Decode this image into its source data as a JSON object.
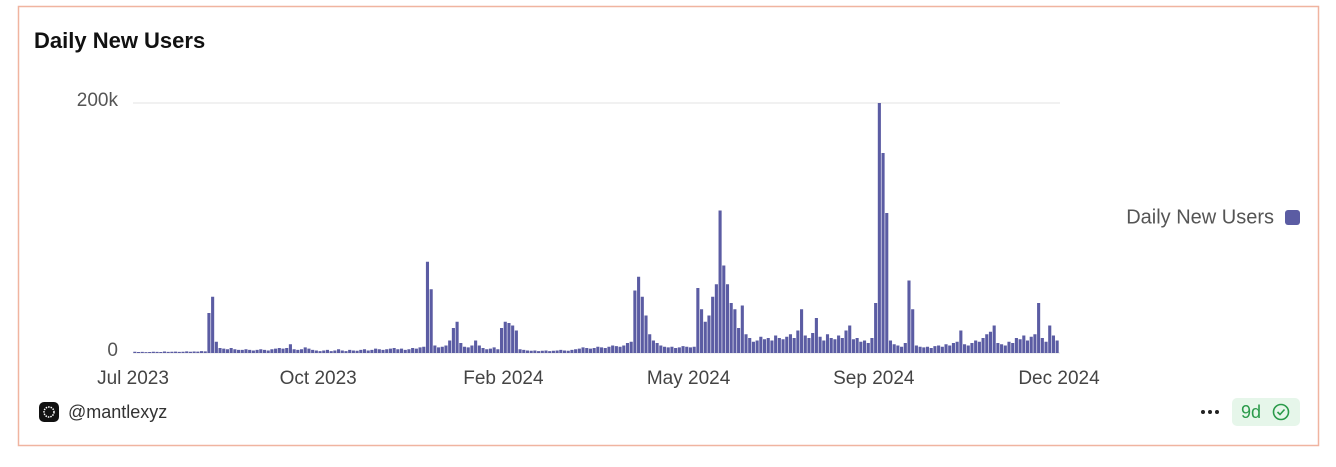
{
  "chart_data": {
    "type": "bar",
    "title": "Daily New Users",
    "series": [
      {
        "name": "Daily New Users",
        "color": "#5b5ca3",
        "values": [
          1000,
          800,
          900,
          700,
          800,
          1000,
          900,
          800,
          1200,
          900,
          1000,
          1100,
          900,
          1000,
          1300,
          1000,
          1200,
          1100,
          1500,
          1300,
          32000,
          45000,
          9000,
          4000,
          3500,
          3000,
          4000,
          3000,
          2500,
          2500,
          3000,
          2500,
          2000,
          2500,
          3000,
          2500,
          2000,
          3000,
          3500,
          4000,
          3500,
          4000,
          7000,
          3000,
          2500,
          3000,
          4500,
          3500,
          2500,
          2000,
          1500,
          2000,
          2500,
          1500,
          2000,
          3000,
          2000,
          1500,
          2500,
          2000,
          1800,
          2500,
          3000,
          2000,
          2500,
          3500,
          3000,
          2500,
          3000,
          3500,
          4000,
          3000,
          3500,
          2500,
          3000,
          4000,
          3500,
          4500,
          5000,
          73000,
          51000,
          6000,
          4500,
          5000,
          6000,
          10000,
          20000,
          25000,
          8000,
          5000,
          4500,
          6000,
          10000,
          6000,
          4000,
          3000,
          3500,
          4500,
          3000,
          20000,
          25000,
          24000,
          22000,
          18000,
          3000,
          2500,
          2000,
          1800,
          2000,
          1500,
          1800,
          2000,
          1500,
          1800,
          2000,
          2500,
          2000,
          1800,
          2500,
          3000,
          3500,
          4500,
          4000,
          3500,
          4000,
          5000,
          4500,
          4000,
          5000,
          6000,
          5500,
          5000,
          6000,
          8000,
          9000,
          50000,
          61000,
          45000,
          30000,
          15000,
          10000,
          8000,
          6000,
          5000,
          4500,
          5000,
          4000,
          4500,
          5500,
          5000,
          4500,
          5000,
          52000,
          35000,
          25000,
          30000,
          45000,
          55000,
          114000,
          70000,
          55000,
          40000,
          35000,
          20000,
          38000,
          15000,
          12000,
          9000,
          10000,
          13000,
          11000,
          12000,
          10000,
          14000,
          12000,
          11000,
          13000,
          15000,
          12000,
          18000,
          35000,
          14000,
          12000,
          16000,
          28000,
          13000,
          10000,
          15000,
          12000,
          11000,
          14000,
          12000,
          18000,
          22000,
          11000,
          12000,
          9000,
          10000,
          8000,
          12000,
          40000,
          200000,
          160000,
          112000,
          10000,
          7000,
          6000,
          5000,
          8000,
          58000,
          35000,
          6000,
          5000,
          4500,
          5000,
          4000,
          5500,
          6000,
          5000,
          7000,
          6000,
          8000,
          9000,
          18000,
          7000,
          6000,
          8000,
          10000,
          9000,
          12000,
          15000,
          17000,
          22000,
          8000,
          7000,
          6000,
          9000,
          8000,
          12000,
          11000,
          14000,
          10000,
          13000,
          15000,
          40000,
          12000,
          9000,
          22000,
          14000,
          10000
        ]
      }
    ],
    "xlim": [
      0,
      250
    ],
    "xticks": [
      {
        "value": 0,
        "label": "Jul 2023"
      },
      {
        "value": 50,
        "label": "Oct 2023"
      },
      {
        "value": 100,
        "label": "Feb 2024"
      },
      {
        "value": 150,
        "label": "May 2024"
      },
      {
        "value": 200,
        "label": "Sep 2024"
      },
      {
        "value": 250,
        "label": "Dec 2024"
      }
    ],
    "ylim": [
      0,
      200000
    ],
    "yticks": [
      0,
      {
        "value": 200000,
        "label": "200k"
      }
    ],
    "grid": true,
    "legend": "right"
  },
  "footer": {
    "author": "@mantlexyz",
    "age": "9d"
  }
}
